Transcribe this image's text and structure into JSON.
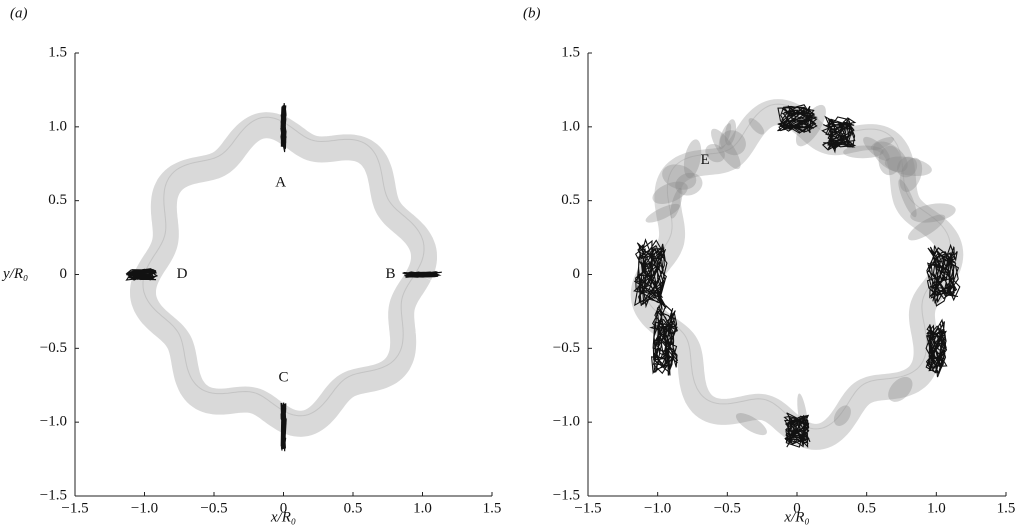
{
  "chart_data": [
    {
      "type": "trajectory",
      "panel_label": "(a)",
      "xlabel": "x/R₀",
      "ylabel": "y/R₀",
      "xlim": [
        -1.5,
        1.5
      ],
      "ylim": [
        -1.5,
        1.5
      ],
      "xticks": [
        {
          "value": -1.5,
          "label": "−1.5"
        },
        {
          "value": -1,
          "label": "−1.0"
        },
        {
          "value": -0.5,
          "label": "−0.5"
        },
        0,
        0.5,
        {
          "value": 1,
          "label": "1.0"
        },
        1.5
      ],
      "yticks": [
        {
          "value": -1.5,
          "label": "−1.5"
        },
        {
          "value": -1,
          "label": "−1.0"
        },
        {
          "value": -0.5,
          "label": "−0.5"
        },
        0,
        0.5,
        {
          "value": 1,
          "label": "1.0"
        },
        1.5
      ],
      "annotations": [
        {
          "text": "A",
          "x": -0.02,
          "y": 0.62
        },
        {
          "text": "B",
          "x": 0.77,
          "y": 0.0
        },
        {
          "text": "C",
          "x": 0.0,
          "y": -0.7
        },
        {
          "text": "D",
          "x": -0.73,
          "y": 0.0
        }
      ]
    },
    {
      "type": "trajectory",
      "panel_label": "(b)",
      "xlabel": "x/R₀",
      "xlim": [
        -1.5,
        1.5
      ],
      "ylim": [
        -1.5,
        1.5
      ],
      "xticks": [
        {
          "value": -1.5,
          "label": "−1.5"
        },
        {
          "value": -1,
          "label": "−1.0"
        },
        {
          "value": -0.5,
          "label": "−0.5"
        },
        0,
        0.5,
        {
          "value": 1,
          "label": "1.0"
        },
        1.5
      ],
      "yticks": [
        {
          "value": -1.5,
          "label": "−1.5"
        },
        {
          "value": -1,
          "label": "−1.0"
        },
        {
          "value": -0.5,
          "label": "−0.5"
        },
        0,
        0.5,
        {
          "value": 1,
          "label": "1.0"
        },
        1.5
      ],
      "annotations": [
        {
          "text": "E",
          "x": -0.66,
          "y": 0.77
        }
      ]
    }
  ]
}
